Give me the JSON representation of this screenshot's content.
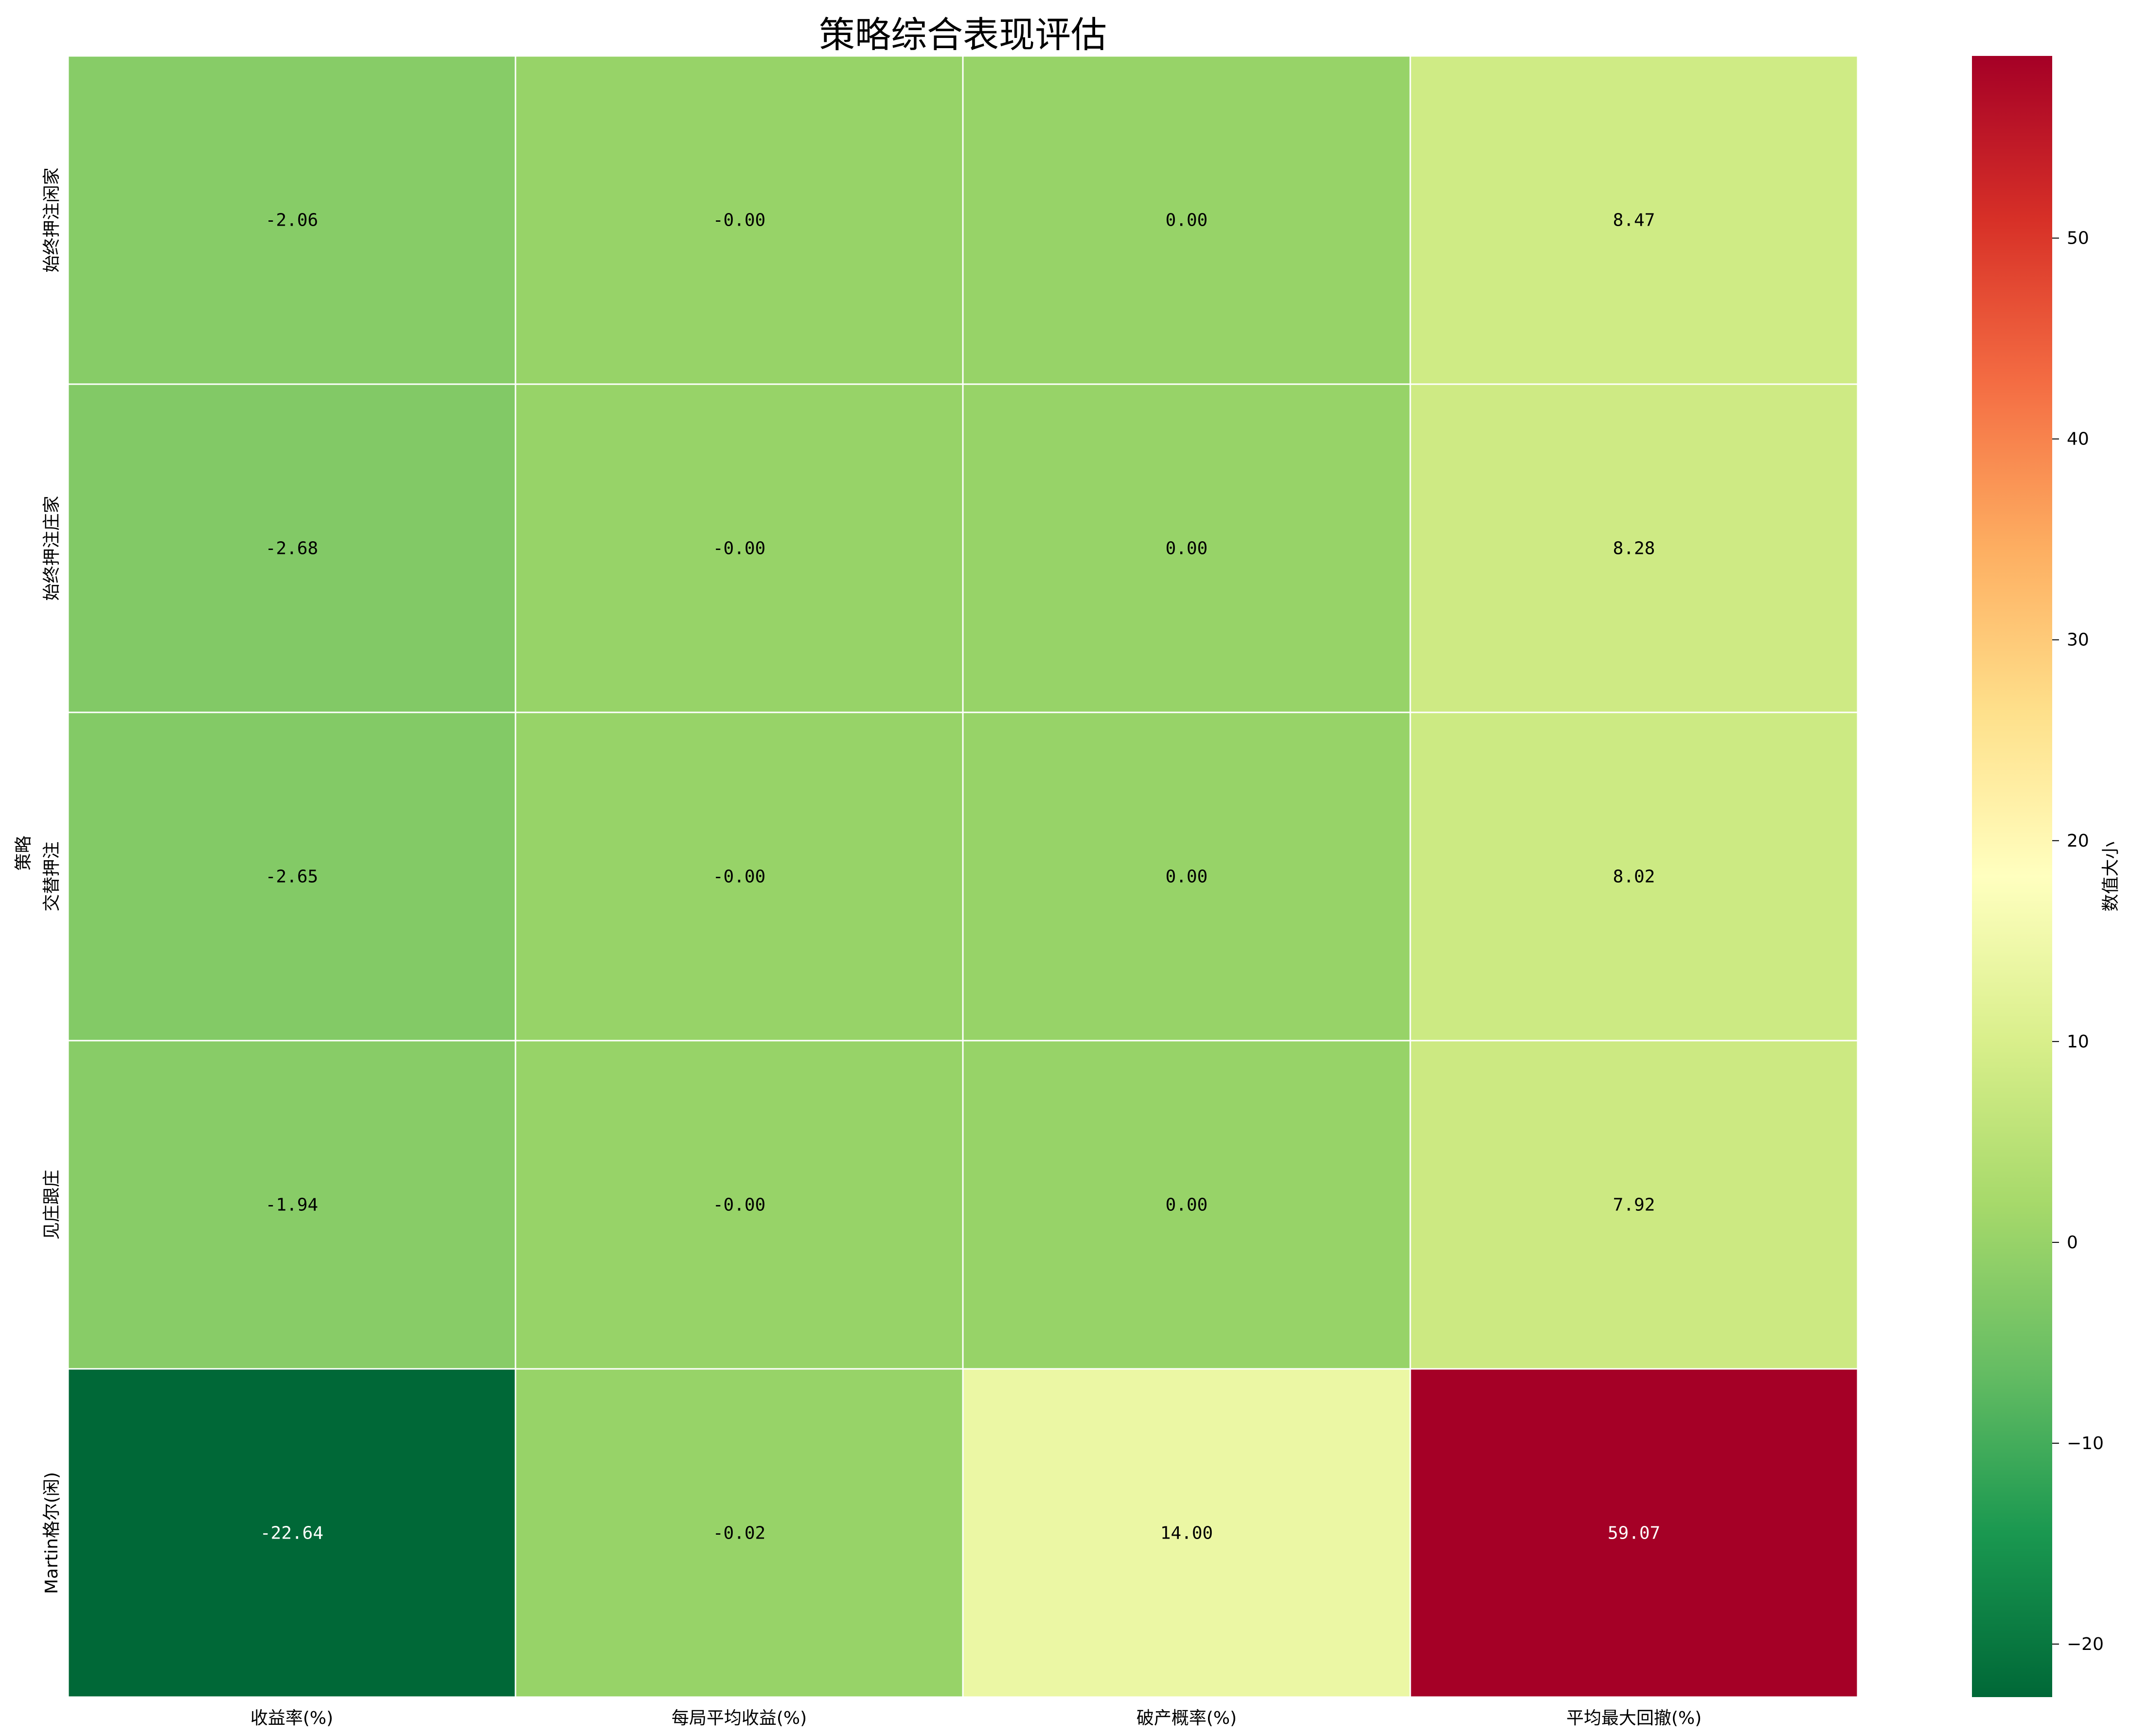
{
  "chart_data": {
    "type": "heatmap",
    "title": "策略综合表现评估",
    "ylabel": "策略",
    "xlabel": "",
    "columns": [
      "收益率(%)",
      "每局平均收益(%)",
      "破产概率(%)",
      "平均最大回撤(%)"
    ],
    "rows": [
      "始终押注闲家",
      "始终押注庄家",
      "交替押注",
      "见庄跟庄",
      "Martin格尔(闲)"
    ],
    "values": [
      [
        -2.06,
        -0.0,
        0.0,
        8.47
      ],
      [
        -2.68,
        -0.0,
        0.0,
        8.28
      ],
      [
        -2.65,
        -0.0,
        0.0,
        8.02
      ],
      [
        -1.94,
        -0.0,
        0.0,
        7.92
      ],
      [
        -22.64,
        -0.02,
        14.0,
        59.07
      ]
    ],
    "labels": [
      [
        "-2.06",
        "-0.00",
        "0.00",
        "8.47"
      ],
      [
        "-2.68",
        "-0.00",
        "0.00",
        "8.28"
      ],
      [
        "-2.65",
        "-0.00",
        "0.00",
        "8.02"
      ],
      [
        "-1.94",
        "-0.00",
        "0.00",
        "7.92"
      ],
      [
        "-22.64",
        "-0.02",
        "14.00",
        "59.07"
      ]
    ],
    "colormap": "RdYlGn_r",
    "vmin": -22.64,
    "vmax": 59.07,
    "colorbar": {
      "label": "数值大小",
      "ticks": [
        -20,
        -10,
        0,
        10,
        20,
        30,
        40,
        50
      ]
    },
    "grid": true
  }
}
